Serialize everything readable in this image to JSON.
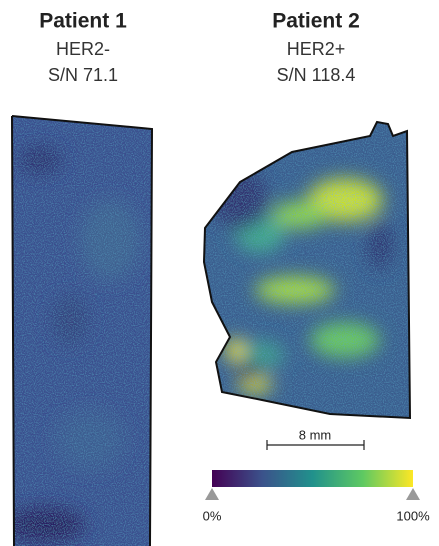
{
  "panels": [
    {
      "title": "Patient 1",
      "status": "HER2-",
      "snr": "S/N 71.1"
    },
    {
      "title": "Patient 2",
      "status": "HER2+",
      "snr": "S/N 118.4"
    }
  ],
  "scale_bar": "8 mm",
  "colorbar": {
    "min_label": "0%",
    "max_label": "100%"
  }
}
